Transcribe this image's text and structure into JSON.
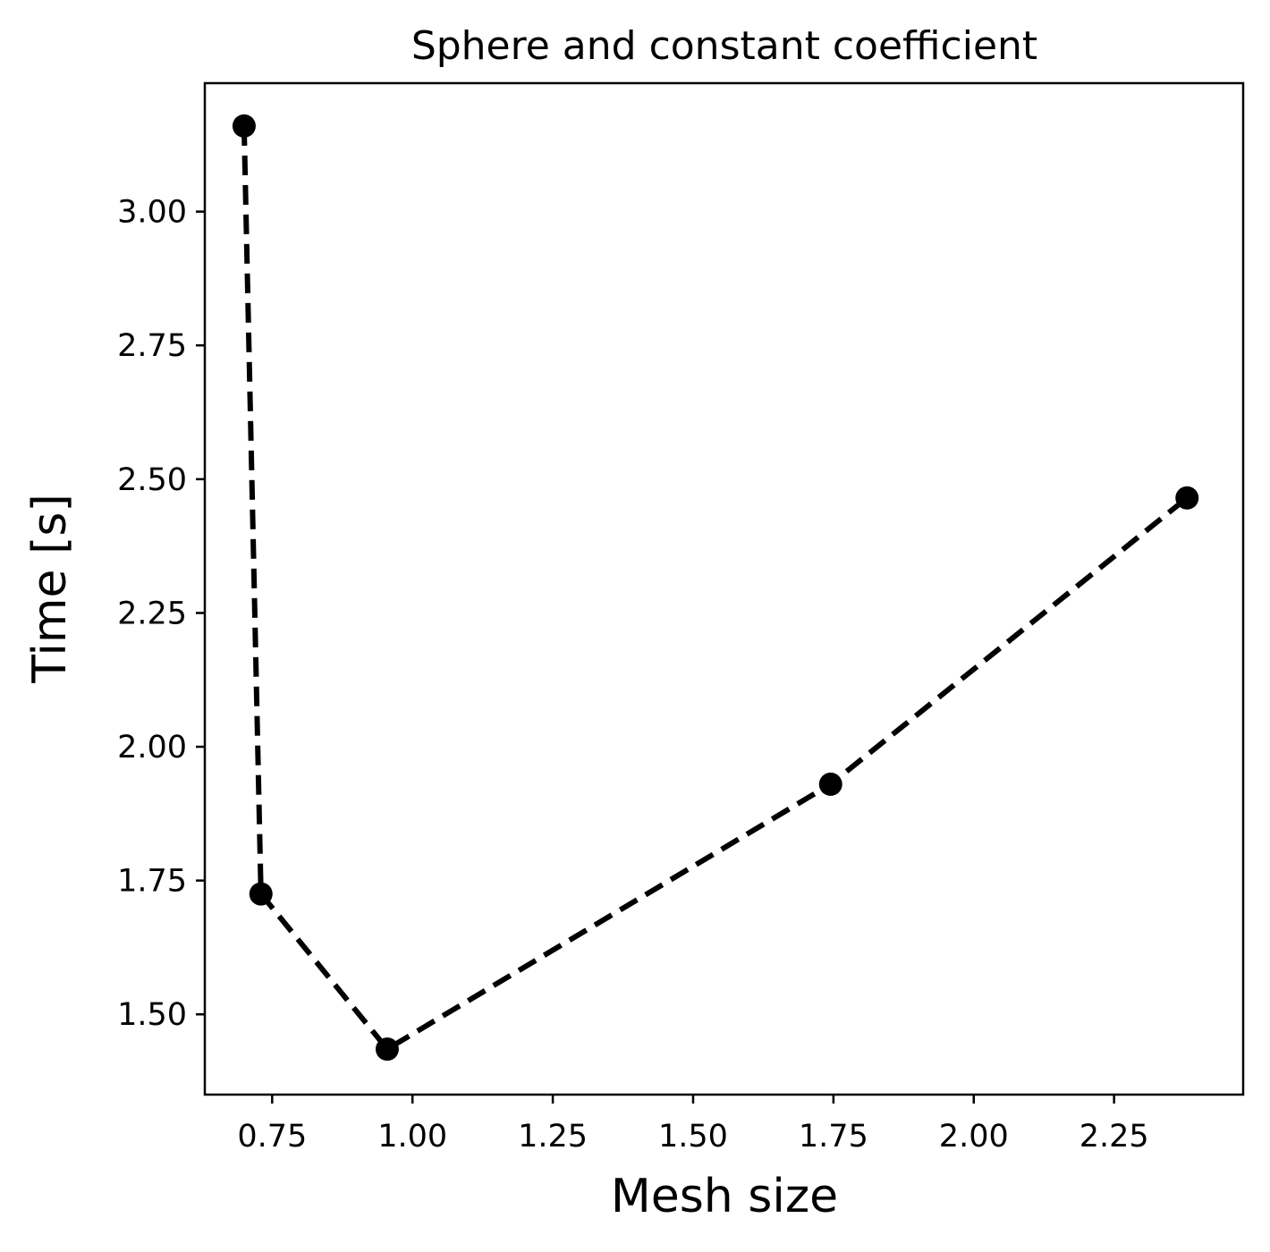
{
  "chart_data": {
    "type": "line",
    "title": "Sphere and constant coefficient",
    "xlabel": "Mesh size",
    "ylabel": "Time [s]",
    "xlim": [
      0.63,
      2.48
    ],
    "ylim": [
      1.35,
      3.24
    ],
    "xticks": [
      0.75,
      1.0,
      1.25,
      1.5,
      1.75,
      2.0,
      2.25
    ],
    "xtick_labels": [
      "0.75",
      "1.00",
      "1.25",
      "1.50",
      "1.75",
      "2.00",
      "2.25"
    ],
    "yticks": [
      1.5,
      1.75,
      2.0,
      2.25,
      2.5,
      2.75,
      3.0
    ],
    "ytick_labels": [
      "1.50",
      "1.75",
      "2.00",
      "2.25",
      "2.50",
      "2.75",
      "3.00"
    ],
    "grid": false,
    "series": [
      {
        "color": "#000000",
        "line_style": "dashed",
        "marker": "circle",
        "x": [
          0.7,
          0.73,
          0.955,
          1.745,
          2.38
        ],
        "y": [
          3.16,
          1.725,
          1.435,
          1.93,
          2.465
        ]
      }
    ]
  }
}
